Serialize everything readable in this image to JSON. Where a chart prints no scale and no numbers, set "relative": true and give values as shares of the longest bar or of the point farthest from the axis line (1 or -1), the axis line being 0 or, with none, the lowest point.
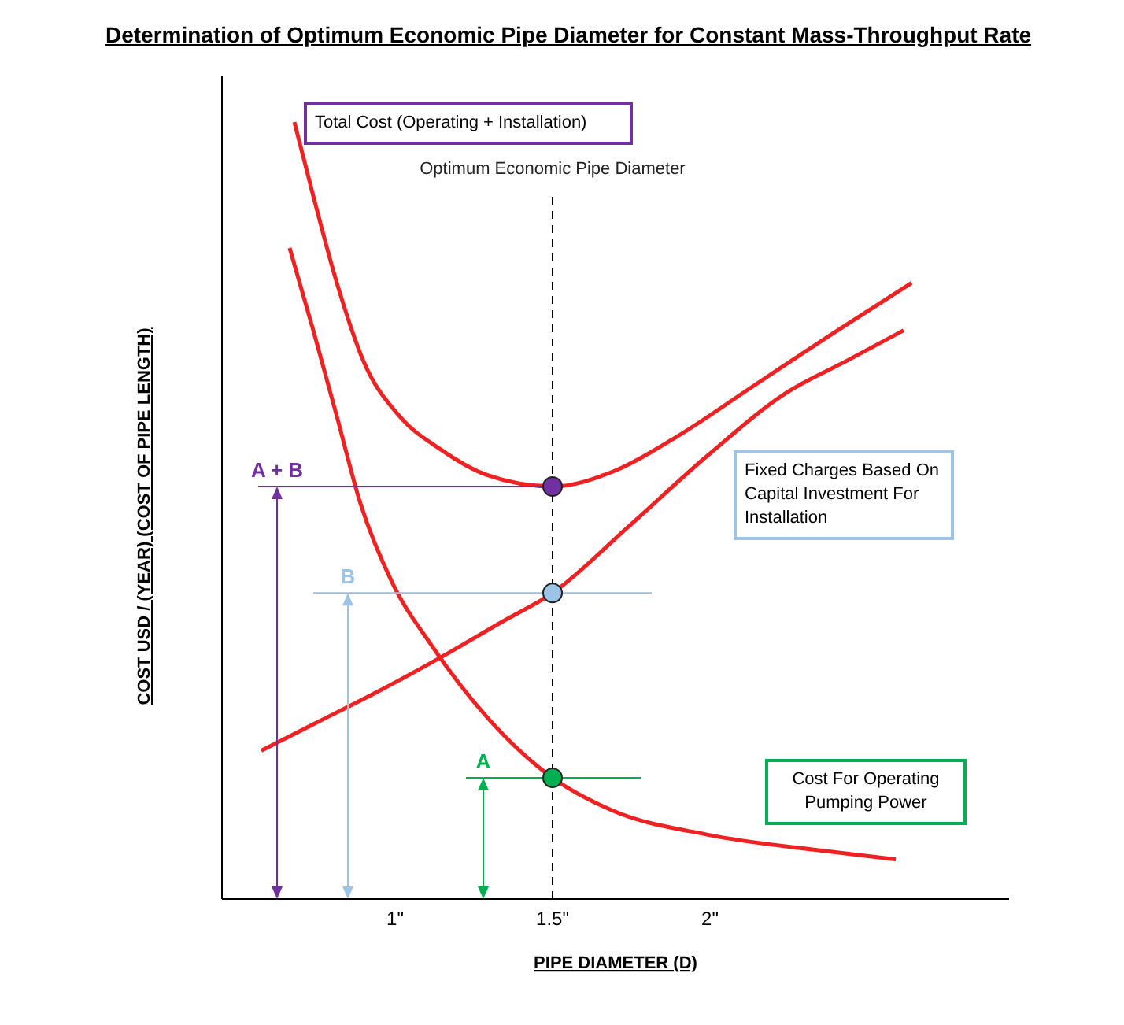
{
  "chart_data": {
    "type": "line",
    "title": "Determination of Optimum Economic Pipe Diameter for Constant Mass-Throughput Rate",
    "xlabel": "PIPE DIAMETER (D)",
    "ylabel": "COST USD / (YEAR) (COST OF PIPE LENGTH)",
    "relative": true,
    "xlim": [
      0.45,
      2.95
    ],
    "xticks": [
      {
        "value": 1,
        "label": "1\""
      },
      {
        "value": 1.5,
        "label": "1.5\""
      },
      {
        "value": 2,
        "label": "2\""
      }
    ],
    "grid": false,
    "legend": false,
    "marker": "none",
    "line_style": "solid",
    "ref_lines": [
      {
        "axis": "x",
        "value": 1.5,
        "label": "Optimum Economic Pipe Diameter",
        "color": "#000000",
        "line_style": "dashed"
      }
    ],
    "annotations": [
      {
        "text": "A + B",
        "x": 0.625,
        "y": 0.531
      },
      {
        "text": "B",
        "x": 0.85,
        "y": 0.394
      },
      {
        "text": "A",
        "x": 1.28,
        "y": 0.156
      }
    ],
    "series": [
      {
        "name": "Total Cost (Operating + Installation)",
        "color": "#ee2222",
        "x": [
          0.68,
          0.74,
          0.815,
          0.9,
          1.015,
          1.14,
          1.29,
          1.5,
          1.69,
          1.89,
          2.14,
          2.39,
          2.64
        ],
        "values": [
          1,
          0.905,
          0.793,
          0.692,
          0.621,
          0.58,
          0.546,
          0.531,
          0.55,
          0.594,
          0.661,
          0.728,
          0.793
        ]
      },
      {
        "name": "Fixed Charges Based On Capital Investment For Installation",
        "color": "#ee2222",
        "x": [
          0.575,
          0.74,
          0.94,
          1.14,
          1.34,
          1.5,
          1.74,
          1.99,
          2.24,
          2.44,
          2.615
        ],
        "values": [
          0.191,
          0.225,
          0.266,
          0.31,
          0.357,
          0.394,
          0.479,
          0.57,
          0.651,
          0.694,
          0.732
        ]
      },
      {
        "name": "Cost For Operating Pumping Power",
        "color": "#ee2222",
        "x": [
          0.665,
          0.74,
          0.815,
          0.89,
          0.99,
          1.115,
          1.29,
          1.5,
          1.69,
          1.99,
          2.34,
          2.59
        ],
        "values": [
          0.838,
          0.732,
          0.621,
          0.509,
          0.408,
          0.327,
          0.235,
          0.156,
          0.114,
          0.083,
          0.063,
          0.051
        ]
      },
      {
        "color": "#7030a0",
        "x": [
          0.565,
          1.5
        ],
        "values": [
          0.531,
          0.531
        ]
      },
      {
        "color": "#a6bdd0",
        "x": [
          0.74,
          1.815
        ],
        "values": [
          0.394,
          0.394
        ]
      },
      {
        "color": "#00b050",
        "x": [
          1.225,
          1.78
        ],
        "values": [
          0.156,
          0.156
        ]
      },
      {
        "type": "scatter",
        "marker": "circle",
        "colors": [
          "#7030a0",
          "#9dc3e6",
          "#00b050"
        ],
        "x": [
          1.5,
          1.5,
          1.5
        ],
        "values": [
          0.531,
          0.394,
          0.156
        ]
      }
    ]
  }
}
